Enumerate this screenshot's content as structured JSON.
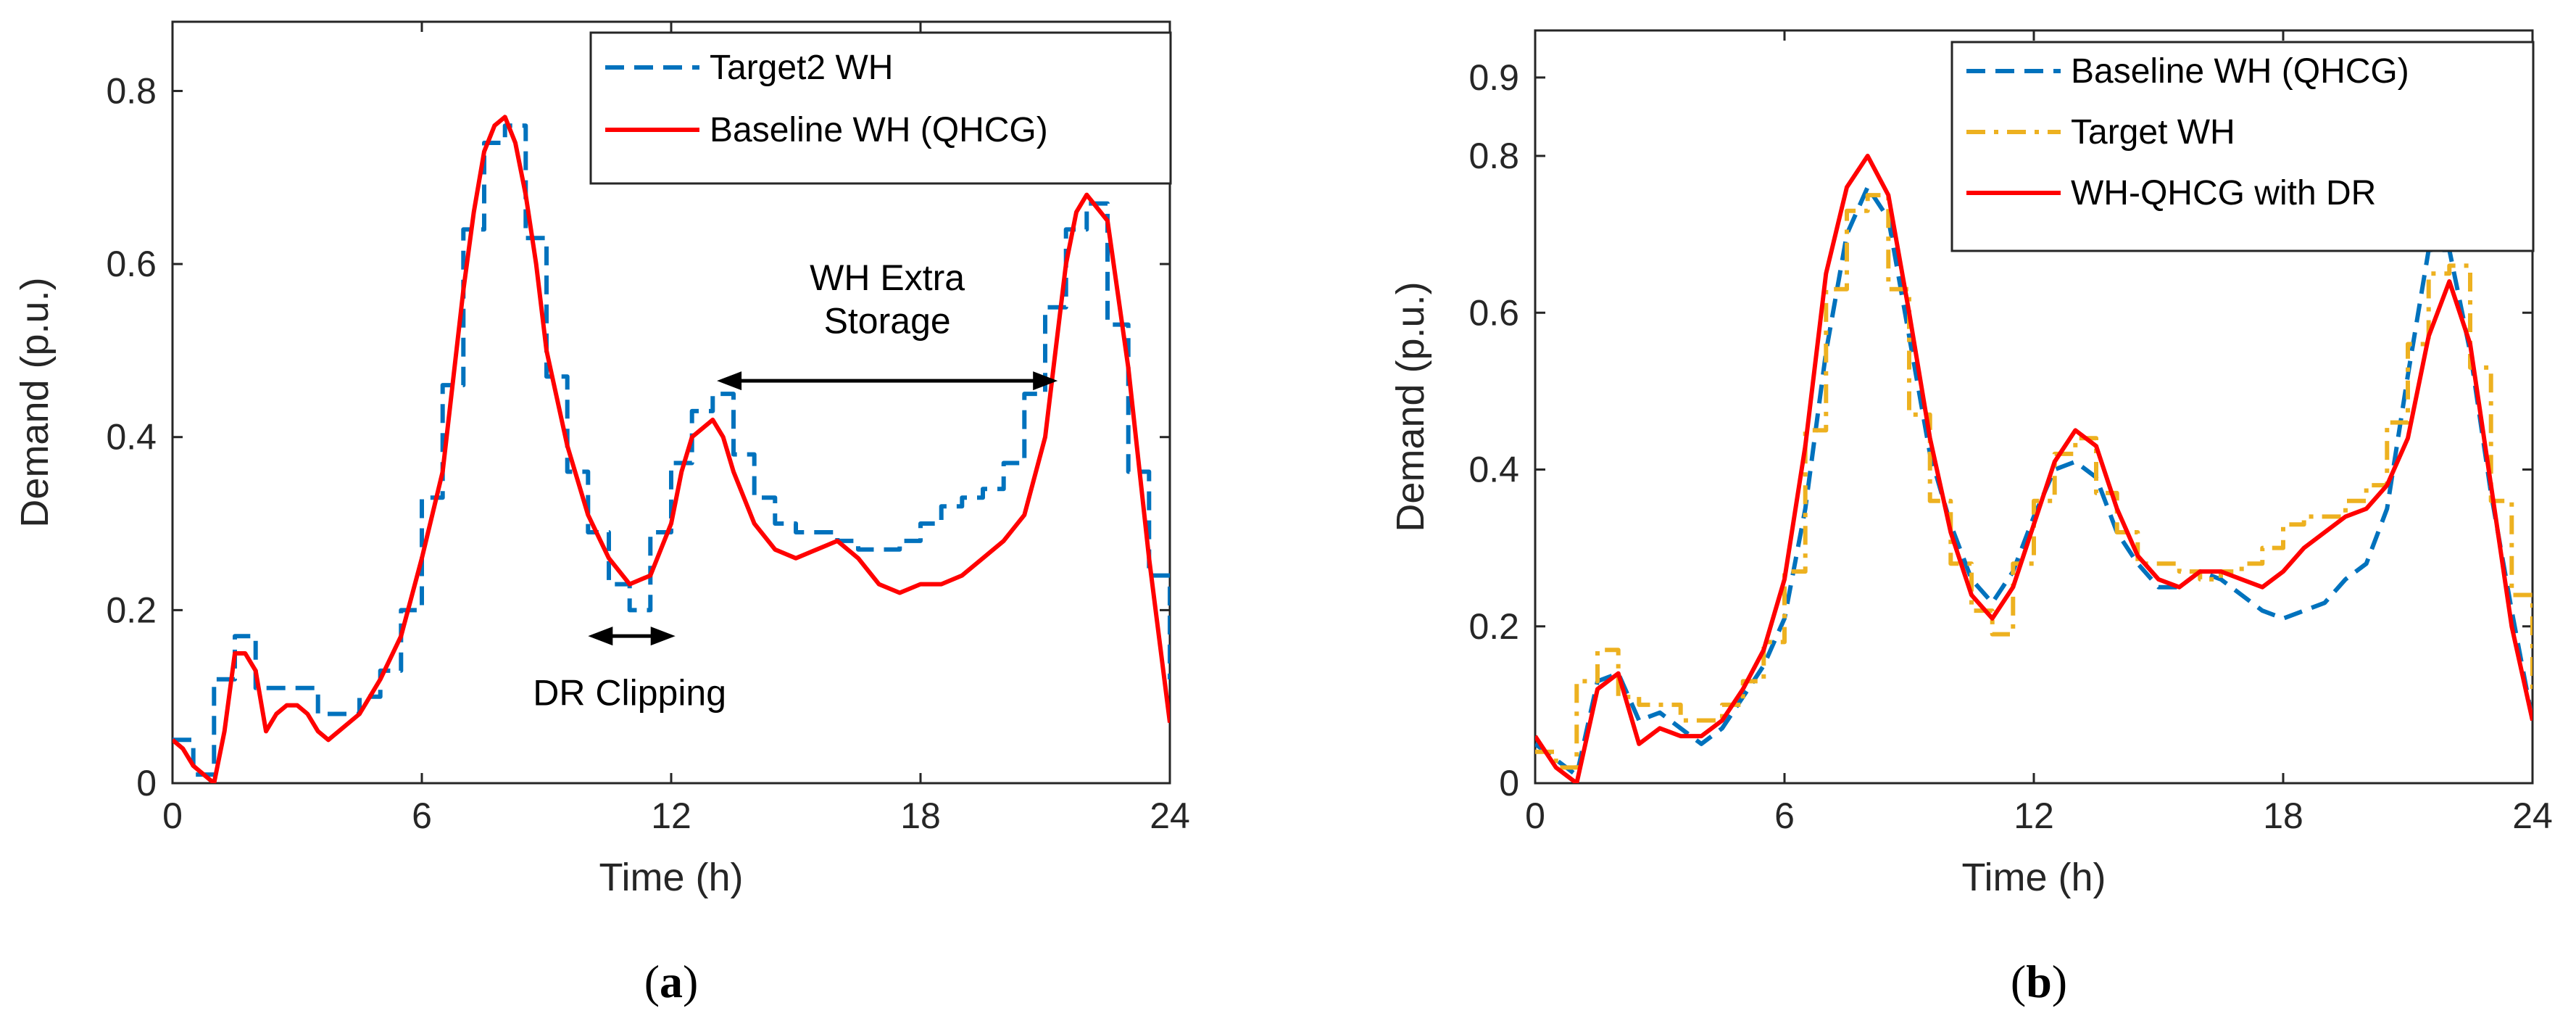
{
  "chart_data": [
    {
      "type": "line",
      "caption_open": "(",
      "caption_letter": "a",
      "caption_close": ")",
      "xlabel": "Time (h)",
      "ylabel": "Demand (p.u.)",
      "xlim": [
        0,
        24
      ],
      "ylim": [
        0,
        0.88
      ],
      "xticks": [
        0,
        6,
        12,
        18,
        24
      ],
      "yticks": [
        0,
        0.2,
        0.4,
        0.6,
        0.8
      ],
      "grid": false,
      "legend_position": "top-right",
      "series": [
        {
          "name": "Target2 WH",
          "style": "dashed",
          "step": true,
          "color": "#0072BD",
          "x": [
            0,
            0.5,
            1,
            1.5,
            2,
            2.5,
            3,
            3.5,
            4,
            4.5,
            5,
            5.5,
            6,
            6.5,
            7,
            7.5,
            8,
            8.5,
            9,
            9.5,
            10,
            10.5,
            11,
            11.5,
            12,
            12.5,
            13,
            13.5,
            14,
            14.5,
            15,
            15.5,
            16,
            16.5,
            17,
            17.5,
            18,
            18.5,
            19,
            19.5,
            20,
            20.5,
            21,
            21.5,
            22,
            22.5,
            23,
            23.5,
            24
          ],
          "y": [
            0.05,
            0.01,
            0.12,
            0.17,
            0.11,
            0.11,
            0.11,
            0.08,
            0.08,
            0.1,
            0.13,
            0.2,
            0.33,
            0.46,
            0.64,
            0.74,
            0.76,
            0.63,
            0.47,
            0.36,
            0.29,
            0.23,
            0.2,
            0.29,
            0.37,
            0.43,
            0.45,
            0.38,
            0.33,
            0.3,
            0.29,
            0.29,
            0.28,
            0.27,
            0.27,
            0.28,
            0.3,
            0.32,
            0.33,
            0.34,
            0.37,
            0.45,
            0.55,
            0.64,
            0.67,
            0.53,
            0.36,
            0.24,
            0.12
          ]
        },
        {
          "name": "Baseline WH (QHCG)",
          "style": "solid",
          "color": "#FF0000",
          "x": [
            0,
            0.25,
            0.5,
            0.75,
            1,
            1.25,
            1.5,
            1.75,
            2,
            2.25,
            2.5,
            2.75,
            3,
            3.25,
            3.5,
            3.75,
            4,
            4.5,
            5,
            5.5,
            6,
            6.5,
            7,
            7.25,
            7.5,
            7.75,
            8,
            8.25,
            8.5,
            8.75,
            9,
            9.5,
            10,
            10.5,
            11,
            11.5,
            12,
            12.25,
            12.5,
            12.75,
            13,
            13.25,
            13.5,
            14,
            14.5,
            15,
            15.5,
            16,
            16.5,
            17,
            17.5,
            18,
            18.5,
            19,
            19.5,
            20,
            20.5,
            21,
            21.25,
            21.5,
            21.75,
            22,
            22.5,
            23,
            23.5,
            24
          ],
          "y": [
            0.05,
            0.04,
            0.02,
            0.01,
            0.0,
            0.06,
            0.15,
            0.15,
            0.13,
            0.06,
            0.08,
            0.09,
            0.09,
            0.08,
            0.06,
            0.05,
            0.06,
            0.08,
            0.12,
            0.17,
            0.26,
            0.36,
            0.57,
            0.66,
            0.73,
            0.76,
            0.77,
            0.74,
            0.68,
            0.6,
            0.5,
            0.39,
            0.31,
            0.26,
            0.23,
            0.24,
            0.3,
            0.36,
            0.4,
            0.41,
            0.42,
            0.4,
            0.36,
            0.3,
            0.27,
            0.26,
            0.27,
            0.28,
            0.26,
            0.23,
            0.22,
            0.23,
            0.23,
            0.24,
            0.26,
            0.28,
            0.31,
            0.4,
            0.5,
            0.6,
            0.66,
            0.68,
            0.65,
            0.48,
            0.26,
            0.07
          ]
        }
      ],
      "annotations": [
        {
          "text_lines": [
            "WH Extra",
            "Storage"
          ],
          "arrow_from_x": 13.1,
          "arrow_to_x": 21.3,
          "arrow_y": 0.465,
          "text_x": 17.2,
          "text_y": [
            0.585,
            0.535
          ]
        },
        {
          "text_lines": [
            "DR Clipping"
          ],
          "arrow_from_x": 10.0,
          "arrow_to_x": 12.1,
          "arrow_y": 0.17,
          "text_x": 11.0,
          "text_y": [
            0.105
          ]
        }
      ]
    },
    {
      "type": "line",
      "caption_open": "(",
      "caption_letter": "b",
      "caption_close": ")",
      "xlabel": "Time (h)",
      "ylabel": "Demand (p.u.)",
      "xlim": [
        0,
        24
      ],
      "ylim": [
        0,
        0.96
      ],
      "xticks": [
        0,
        6,
        12,
        18,
        24
      ],
      "yticks": [
        0,
        0.2,
        0.4,
        0.6,
        0.8,
        0.9
      ],
      "grid": false,
      "legend_position": "top-right",
      "series": [
        {
          "name": "Baseline WH (QHCG)",
          "style": "dashed",
          "color": "#0072BD",
          "x": [
            0,
            0.5,
            1,
            1.5,
            2,
            2.5,
            3,
            3.5,
            4,
            4.5,
            5,
            5.5,
            6,
            6.5,
            7,
            7.5,
            8,
            8.5,
            9,
            9.5,
            10,
            10.5,
            11,
            11.5,
            12,
            12.5,
            13,
            13.5,
            14,
            14.5,
            15,
            15.5,
            16,
            16.5,
            17,
            17.5,
            18,
            18.5,
            19,
            19.5,
            20,
            20.5,
            21,
            21.5,
            22,
            22.5,
            23,
            23.5,
            24
          ],
          "y": [
            0.05,
            0.03,
            0.01,
            0.13,
            0.14,
            0.08,
            0.09,
            0.07,
            0.05,
            0.07,
            0.11,
            0.15,
            0.21,
            0.35,
            0.55,
            0.7,
            0.76,
            0.72,
            0.57,
            0.42,
            0.33,
            0.26,
            0.23,
            0.27,
            0.34,
            0.4,
            0.41,
            0.39,
            0.32,
            0.28,
            0.25,
            0.25,
            0.27,
            0.26,
            0.24,
            0.22,
            0.21,
            0.22,
            0.23,
            0.26,
            0.28,
            0.35,
            0.52,
            0.68,
            0.68,
            0.55,
            0.37,
            0.22,
            0.08
          ]
        },
        {
          "name": "Target WH",
          "style": "dashdot",
          "step": true,
          "color": "#EDB120",
          "x": [
            0,
            0.5,
            1,
            1.5,
            2,
            2.5,
            3,
            3.5,
            4,
            4.5,
            5,
            5.5,
            6,
            6.5,
            7,
            7.5,
            8,
            8.5,
            9,
            9.5,
            10,
            10.5,
            11,
            11.5,
            12,
            12.5,
            13,
            13.5,
            14,
            14.5,
            15,
            15.5,
            16,
            16.5,
            17,
            17.5,
            18,
            18.5,
            19,
            19.5,
            20,
            20.5,
            21,
            21.5,
            22,
            22.5,
            23,
            23.5,
            24
          ],
          "y": [
            0.04,
            0.02,
            0.13,
            0.17,
            0.11,
            0.1,
            0.1,
            0.08,
            0.08,
            0.1,
            0.13,
            0.18,
            0.27,
            0.45,
            0.63,
            0.73,
            0.75,
            0.63,
            0.47,
            0.36,
            0.28,
            0.22,
            0.19,
            0.28,
            0.36,
            0.42,
            0.44,
            0.37,
            0.32,
            0.28,
            0.28,
            0.27,
            0.26,
            0.27,
            0.28,
            0.3,
            0.33,
            0.34,
            0.34,
            0.36,
            0.38,
            0.46,
            0.56,
            0.65,
            0.66,
            0.53,
            0.36,
            0.24,
            0.12
          ]
        },
        {
          "name": "WH-QHCG with DR",
          "style": "solid",
          "color": "#FF0000",
          "x": [
            0,
            0.5,
            1,
            1.5,
            2,
            2.5,
            3,
            3.5,
            4,
            4.5,
            5,
            5.5,
            6,
            6.5,
            7,
            7.5,
            8,
            8.5,
            9,
            9.5,
            10,
            10.5,
            11,
            11.5,
            12,
            12.5,
            13,
            13.5,
            14,
            14.5,
            15,
            15.5,
            16,
            16.5,
            17,
            17.5,
            18,
            18.5,
            19,
            19.5,
            20,
            20.5,
            21,
            21.5,
            22,
            22.5,
            23,
            23.5,
            24
          ],
          "y": [
            0.06,
            0.02,
            0.0,
            0.12,
            0.14,
            0.05,
            0.07,
            0.06,
            0.06,
            0.08,
            0.12,
            0.17,
            0.26,
            0.43,
            0.65,
            0.76,
            0.8,
            0.75,
            0.6,
            0.44,
            0.32,
            0.24,
            0.21,
            0.25,
            0.33,
            0.41,
            0.45,
            0.43,
            0.35,
            0.29,
            0.26,
            0.25,
            0.27,
            0.27,
            0.26,
            0.25,
            0.27,
            0.3,
            0.32,
            0.34,
            0.35,
            0.38,
            0.44,
            0.57,
            0.64,
            0.56,
            0.38,
            0.2,
            0.08
          ]
        }
      ],
      "annotations": []
    }
  ]
}
